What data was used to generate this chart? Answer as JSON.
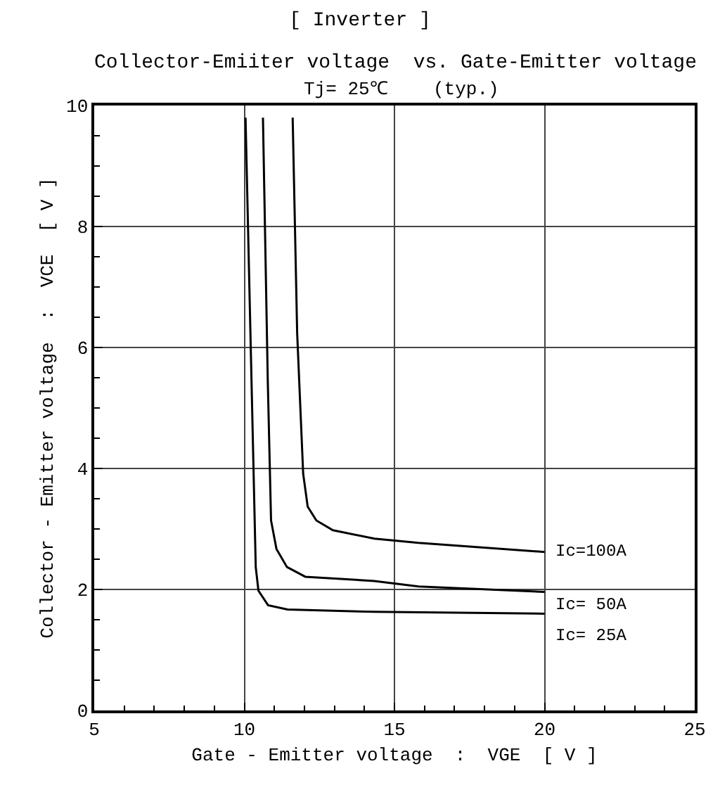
{
  "chart_data": {
    "type": "line",
    "title": "[ Inverter ]",
    "subtitle": "Collector-Emiiter voltage  vs. Gate-Emitter voltage",
    "annotations": [
      "Tj= 25℃",
      "(typ.)"
    ],
    "xlabel": "Gate - Emitter voltage  :  VGE  [ V ]",
    "ylabel": "Collector - Emitter voltage  :  VCE  [ V ]",
    "xlim": [
      5,
      25
    ],
    "xticks": [
      5,
      10,
      15,
      20,
      25
    ],
    "ylim": [
      0,
      10
    ],
    "yticks": [
      0,
      2,
      4,
      6,
      8,
      10
    ],
    "grid": true,
    "legend": false,
    "marker": "none",
    "line_style": "solid",
    "series": [
      {
        "name": "Ic=100A",
        "color": "#000000",
        "x": [
          11.61,
          11.76,
          11.96,
          12.11,
          12.4,
          12.95,
          14.33,
          15.8,
          20.0
        ],
        "values": [
          9.8,
          6.23,
          3.91,
          3.37,
          3.14,
          2.98,
          2.84,
          2.77,
          2.62
        ]
      },
      {
        "name": "Ic= 50A",
        "color": "#000000",
        "x": [
          10.62,
          10.78,
          10.89,
          11.07,
          11.42,
          12.03,
          14.33,
          15.8,
          20.0
        ],
        "values": [
          9.8,
          5.47,
          3.14,
          2.67,
          2.37,
          2.21,
          2.14,
          2.05,
          1.96
        ]
      },
      {
        "name": "Ic= 25A",
        "color": "#000000",
        "x": [
          10.04,
          10.38,
          10.47,
          10.79,
          11.44,
          14.33,
          20.0
        ],
        "values": [
          9.8,
          2.37,
          1.98,
          1.74,
          1.67,
          1.63,
          1.6
        ]
      }
    ]
  }
}
